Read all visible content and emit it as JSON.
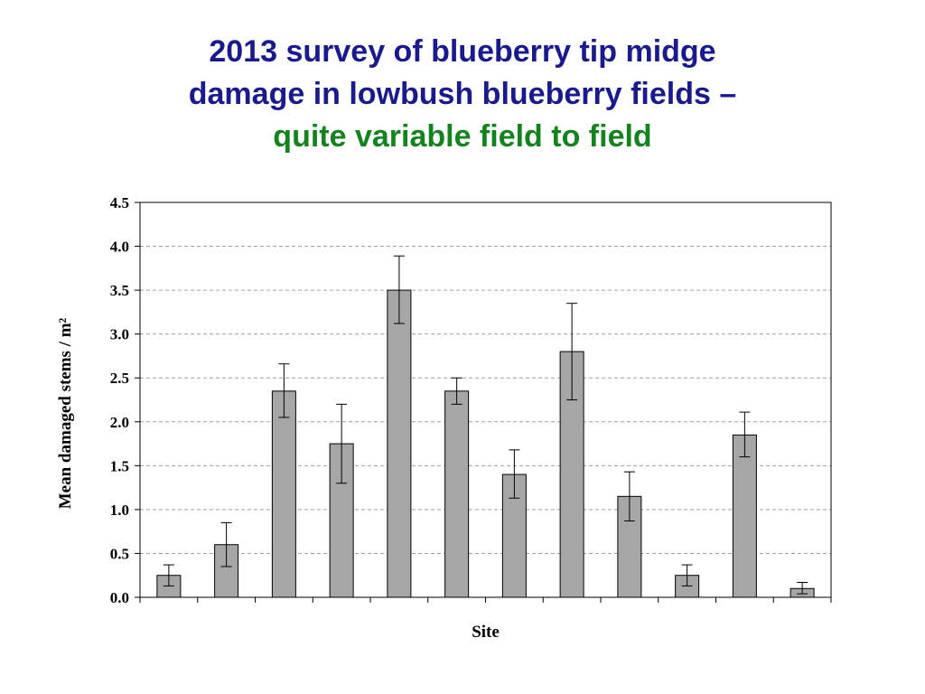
{
  "title": {
    "line1": "2013 survey of blueberry tip midge",
    "line2": "damage in lowbush blueberry fields –",
    "line3": "quite variable field to field"
  },
  "colors": {
    "title_blue": "#1a1a8c",
    "title_green": "#14821e",
    "bar_fill": "#a6a6a6",
    "grid": "#a0a0a0"
  },
  "chart_data": {
    "type": "bar",
    "categories": [
      "",
      "",
      "",
      "",
      "",
      "",
      "",
      "",
      "",
      "",
      "",
      ""
    ],
    "values": [
      0.25,
      0.6,
      2.35,
      1.75,
      3.5,
      2.35,
      1.4,
      2.8,
      1.15,
      0.25,
      1.85,
      0.1
    ],
    "error_low": [
      0.13,
      0.35,
      2.05,
      1.3,
      3.12,
      2.2,
      1.13,
      2.25,
      0.87,
      0.13,
      1.6,
      0.04
    ],
    "error_high": [
      0.37,
      0.85,
      2.66,
      2.2,
      3.89,
      2.5,
      1.68,
      3.35,
      1.43,
      0.37,
      2.11,
      0.17
    ],
    "xlabel": "Site",
    "ylabel": "Mean damaged stems / m²",
    "ylim": [
      0,
      4.5
    ],
    "yticks": [
      "0.0",
      "0.5",
      "1.0",
      "1.5",
      "2.0",
      "2.5",
      "3.0",
      "3.5",
      "4.0",
      "4.5"
    ],
    "grid": "horizontal dashed",
    "legend": "none"
  }
}
